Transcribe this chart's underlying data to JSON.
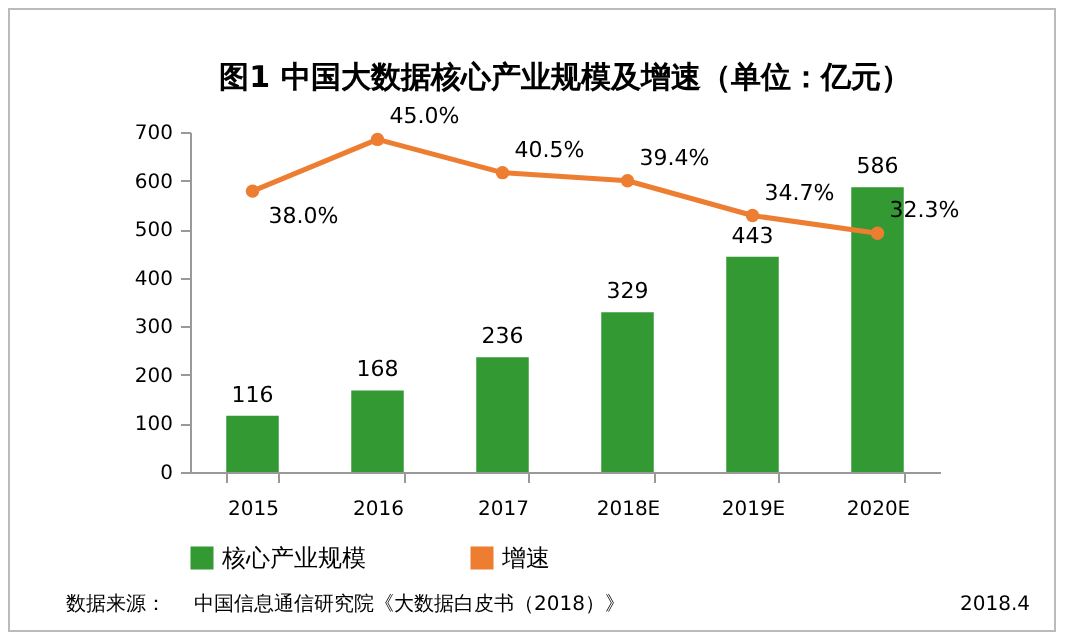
{
  "chart_data": {
    "type": "bar",
    "title": "图1  中国大数据核心产业规模及增速（单位：亿元）",
    "categories": [
      "2015",
      "2016",
      "2017",
      "2018E",
      "2019E",
      "2020E"
    ],
    "ylim": [
      0,
      700
    ],
    "yticks": [
      0,
      100,
      200,
      300,
      400,
      500,
      600,
      700
    ],
    "y2lim": [
      0,
      46
    ],
    "series": [
      {
        "name": "核心产业规模",
        "color": "#339933",
        "values": [
          116,
          168,
          236,
          329,
          443,
          586
        ],
        "value_labels": [
          "116",
          "168",
          "236",
          "329",
          "443",
          "586"
        ]
      },
      {
        "name": "增速",
        "type": "line",
        "axis": "y2",
        "color": "#ed7d31",
        "values": [
          38.0,
          45.0,
          40.5,
          39.4,
          34.7,
          32.3
        ],
        "value_labels": [
          "38.0%",
          "45.0%",
          "40.5%",
          "39.4%",
          "34.7%",
          "32.3%"
        ]
      }
    ],
    "marker": "circle",
    "grid": false,
    "legend": "bottom",
    "annotations": [
      "数据来源：",
      "中国信息通信研究院《大数据白皮书（2018）》",
      "2018.4"
    ]
  }
}
